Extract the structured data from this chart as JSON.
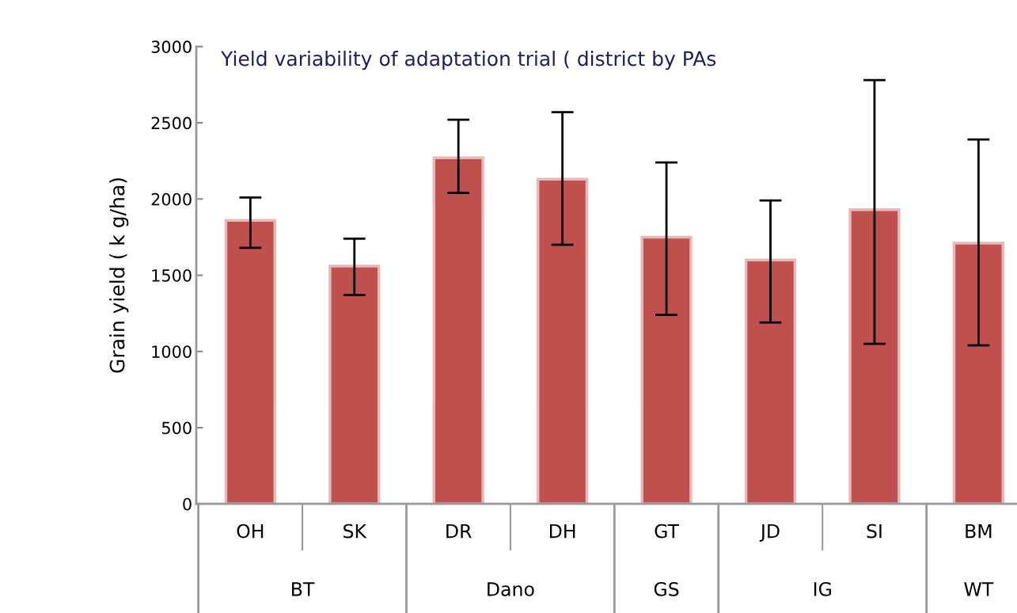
{
  "chart_data": {
    "type": "bar",
    "title": "Yield variability of adaptation trial ( district by PAs",
    "ylabel": "Grain yield ( k g/ha)",
    "categories": [
      "OH",
      "SK",
      "DR",
      "DH",
      "GT",
      "JD",
      "SI",
      "BM"
    ],
    "values": [
      1860,
      1560,
      2270,
      2130,
      1750,
      1600,
      1930,
      1710
    ],
    "errors": [
      [
        1680,
        2010
      ],
      [
        1370,
        1740
      ],
      [
        2040,
        2520
      ],
      [
        1700,
        2570
      ],
      [
        1240,
        2240
      ],
      [
        1190,
        1990
      ],
      [
        1050,
        2780
      ],
      [
        1040,
        2390
      ]
    ],
    "color": "#c0504d",
    "ylim": [
      0,
      3000
    ],
    "yticks": [
      0,
      500,
      1000,
      1500,
      2000,
      2500,
      3000
    ],
    "annotations": [
      "BT",
      "Dano",
      "GS",
      "IG",
      "WT"
    ],
    "grid": false
  }
}
